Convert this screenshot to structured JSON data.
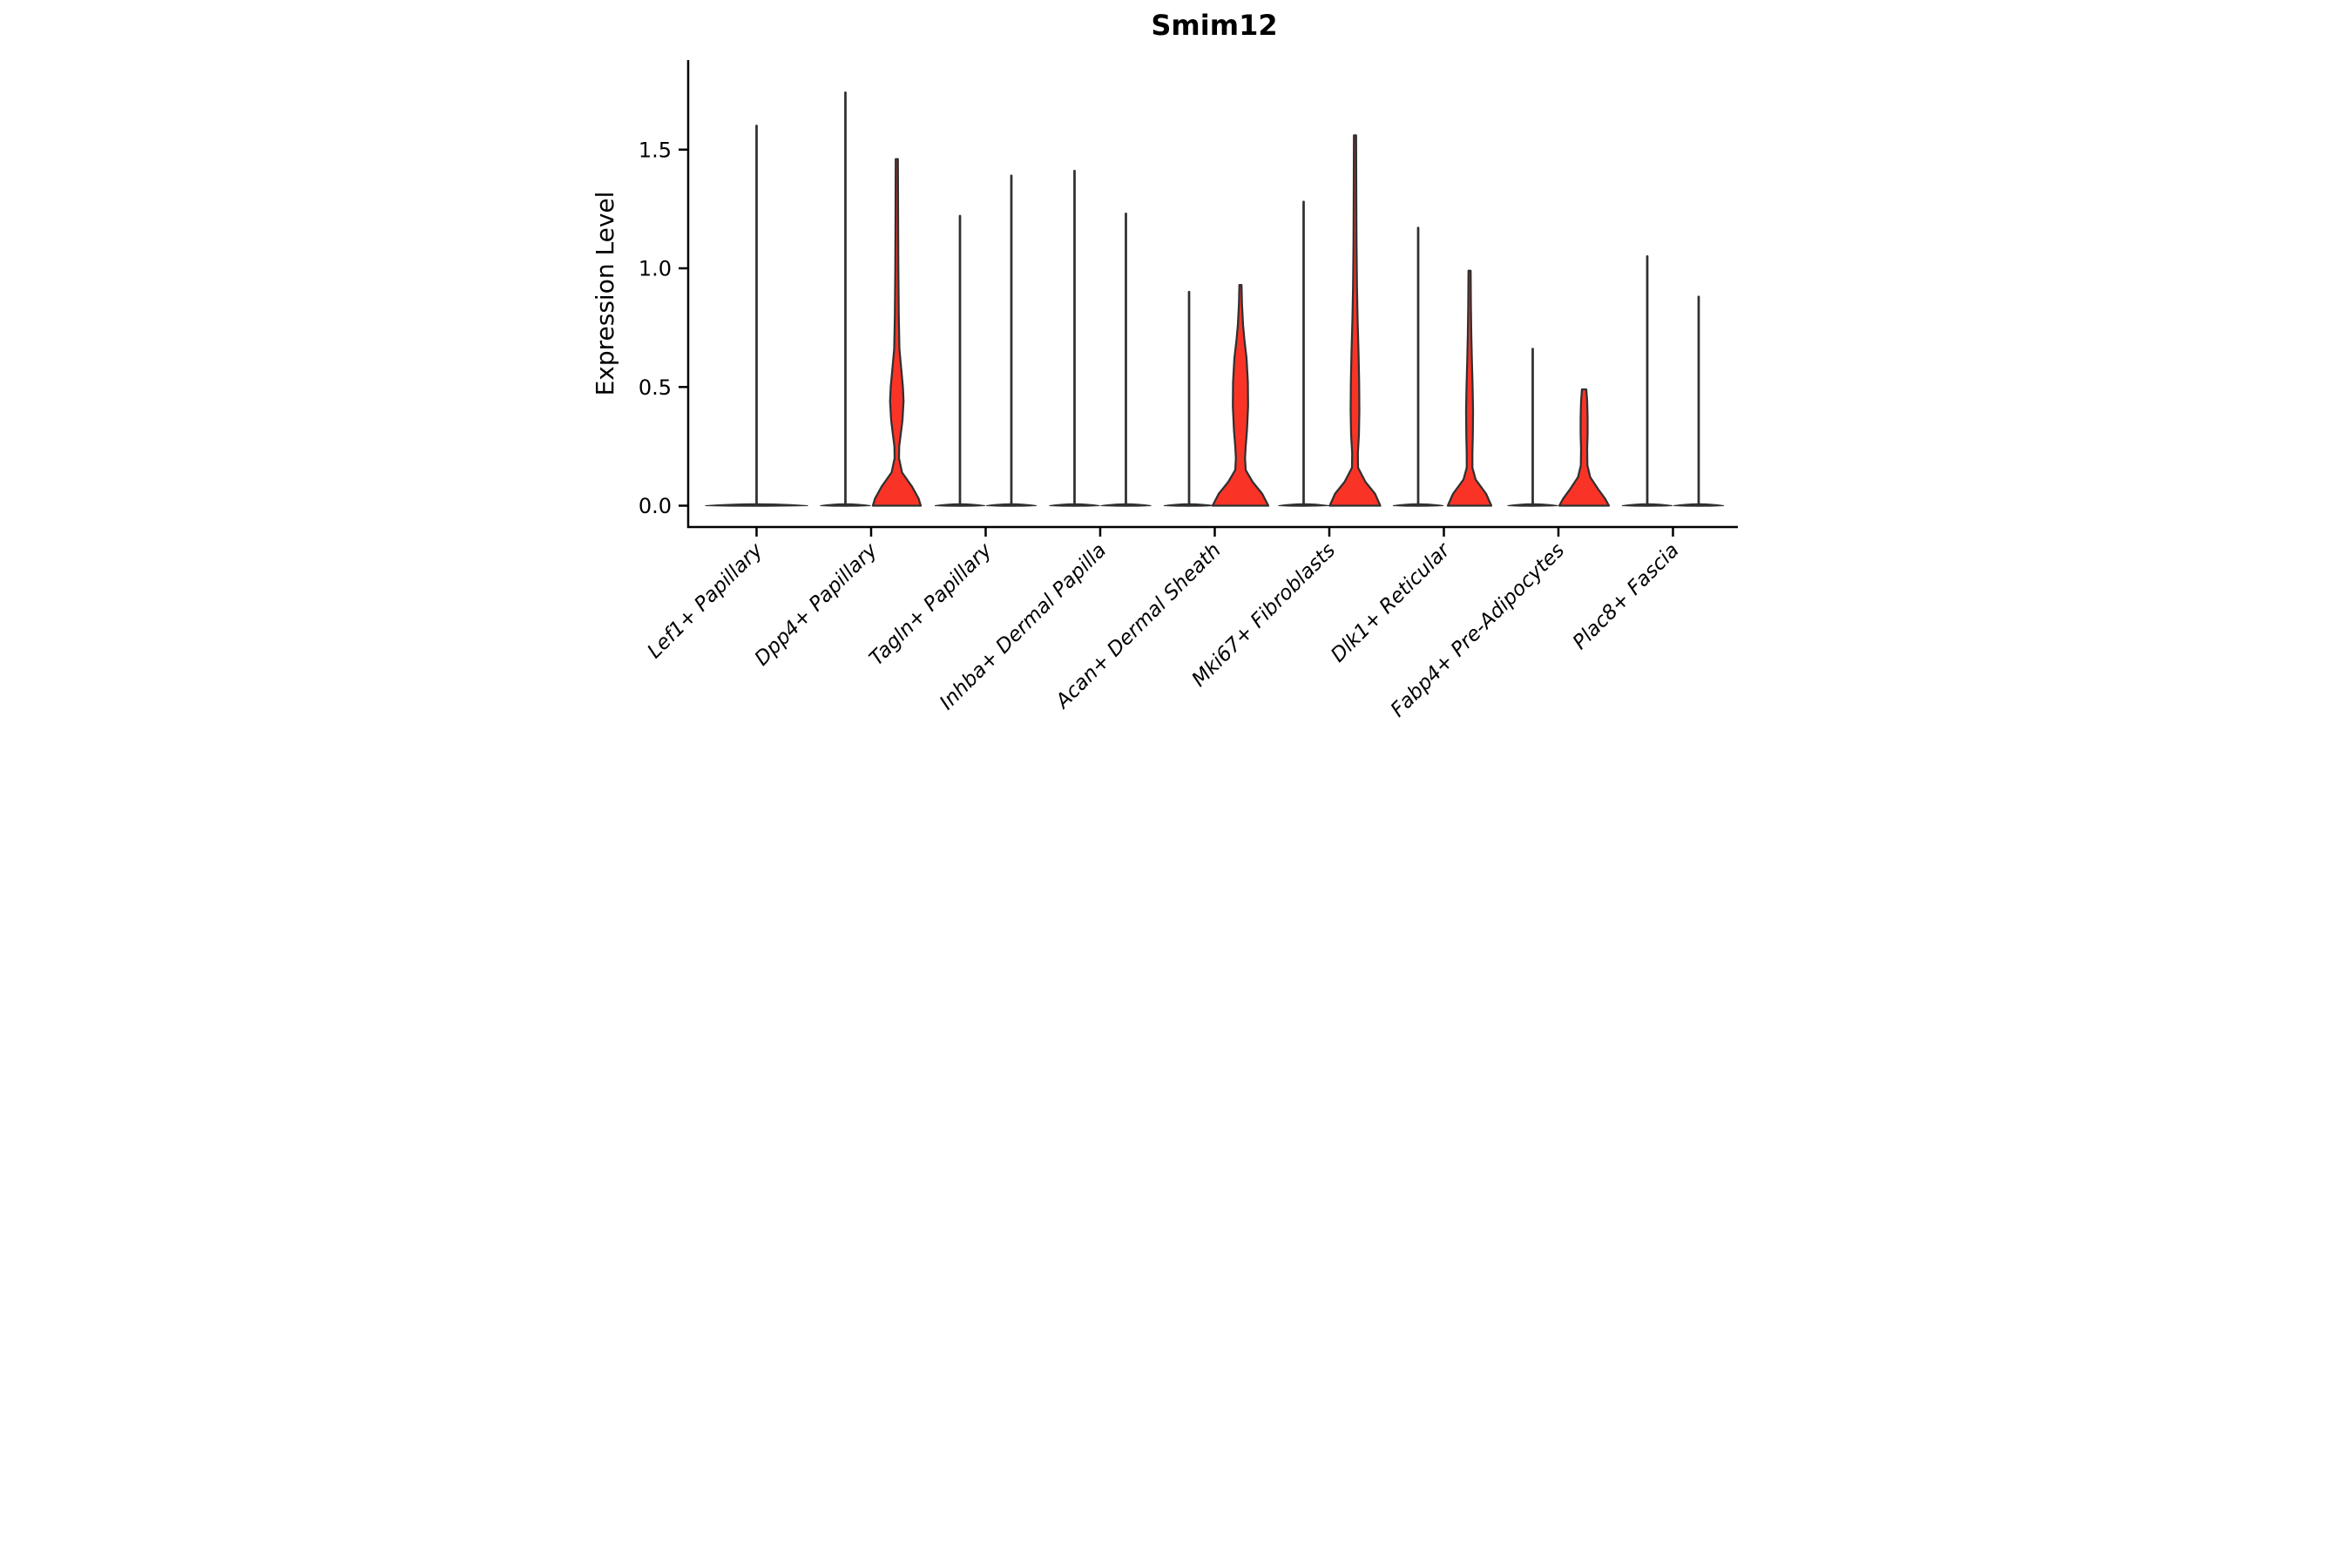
{
  "chart_data": {
    "type": "violin",
    "title": "Smim12",
    "ylabel": "Expression Level",
    "xlabel": "",
    "ylim": [
      -0.09,
      1.88
    ],
    "grid": false,
    "legend": null,
    "colors": {
      "violin_fill_highlight": "#f93427",
      "violin_outline": "#303030",
      "axis": "#000000",
      "background": "#ffffff"
    },
    "y_ticks": [
      {
        "value": 0.0,
        "label": "0.0"
      },
      {
        "value": 0.5,
        "label": "0.5"
      },
      {
        "value": 1.0,
        "label": "1.0"
      },
      {
        "value": 1.5,
        "label": "1.5"
      }
    ],
    "categories": [
      {
        "label": "Lef1+ Papillary",
        "violins": [
          {
            "position": "center",
            "style": "spike",
            "max_expression": 1.6,
            "filled": false
          }
        ]
      },
      {
        "label": "Dpp4+ Papillary",
        "violins": [
          {
            "position": "left",
            "style": "spike",
            "max_expression": 1.74,
            "filled": false
          },
          {
            "position": "right",
            "style": "filled",
            "max_expression": 1.46,
            "filled": true,
            "profile": [
              [
                1.46,
                2.5
              ],
              [
                1.2,
                3
              ],
              [
                1.0,
                3.5
              ],
              [
                0.8,
                4.5
              ],
              [
                0.66,
                6
              ],
              [
                0.58,
                10
              ],
              [
                0.5,
                14
              ],
              [
                0.44,
                15.5
              ],
              [
                0.36,
                13
              ],
              [
                0.3,
                9
              ],
              [
                0.25,
                5.5
              ],
              [
                0.2,
                5
              ],
              [
                0.14,
                12
              ],
              [
                0.08,
                35
              ],
              [
                0.03,
                50
              ],
              [
                0,
                55
              ]
            ]
          }
        ]
      },
      {
        "label": "Tagln+ Papillary",
        "violins": [
          {
            "position": "left",
            "style": "spike",
            "max_expression": 1.22,
            "filled": false
          },
          {
            "position": "right",
            "style": "spike",
            "max_expression": 1.39,
            "filled": false
          }
        ]
      },
      {
        "label": "Inhba+ Dermal Papilla",
        "violins": [
          {
            "position": "left",
            "style": "spike",
            "max_expression": 1.41,
            "filled": false
          },
          {
            "position": "right",
            "style": "spike",
            "max_expression": 1.23,
            "filled": false
          }
        ]
      },
      {
        "label": "Acan+ Dermal Sheath",
        "violins": [
          {
            "position": "left",
            "style": "spike",
            "max_expression": 0.9,
            "filled": false
          },
          {
            "position": "right",
            "style": "filled",
            "max_expression": 0.93,
            "filled": true,
            "profile": [
              [
                0.93,
                2.5
              ],
              [
                0.85,
                3.5
              ],
              [
                0.76,
                6
              ],
              [
                0.7,
                9
              ],
              [
                0.62,
                14
              ],
              [
                0.52,
                17
              ],
              [
                0.42,
                17.5
              ],
              [
                0.32,
                15
              ],
              [
                0.25,
                12
              ],
              [
                0.2,
                10.5
              ],
              [
                0.15,
                12
              ],
              [
                0.1,
                28
              ],
              [
                0.05,
                50
              ],
              [
                0,
                64
              ]
            ]
          }
        ]
      },
      {
        "label": "Mki67+ Fibroblasts",
        "violins": [
          {
            "position": "left",
            "style": "spike",
            "max_expression": 1.28,
            "filled": false
          },
          {
            "position": "right",
            "style": "filled",
            "max_expression": 1.56,
            "filled": true,
            "profile": [
              [
                1.56,
                2.5
              ],
              [
                1.3,
                3
              ],
              [
                1.1,
                3.5
              ],
              [
                0.92,
                4.5
              ],
              [
                0.78,
                6
              ],
              [
                0.65,
                8
              ],
              [
                0.52,
                9.5
              ],
              [
                0.4,
                10
              ],
              [
                0.3,
                9
              ],
              [
                0.22,
                6.5
              ],
              [
                0.16,
                7
              ],
              [
                0.1,
                24
              ],
              [
                0.05,
                46
              ],
              [
                0,
                58
              ]
            ]
          }
        ]
      },
      {
        "label": "Dlk1+ Reticular",
        "violins": [
          {
            "position": "left",
            "style": "spike",
            "max_expression": 1.17,
            "filled": false
          },
          {
            "position": "right",
            "style": "filled",
            "max_expression": 0.99,
            "filled": true,
            "profile": [
              [
                0.99,
                2.5
              ],
              [
                0.85,
                3
              ],
              [
                0.72,
                4
              ],
              [
                0.6,
                5.5
              ],
              [
                0.5,
                7
              ],
              [
                0.4,
                8
              ],
              [
                0.3,
                7.5
              ],
              [
                0.22,
                6.5
              ],
              [
                0.16,
                6.5
              ],
              [
                0.11,
                14
              ],
              [
                0.05,
                38
              ],
              [
                0,
                50
              ]
            ]
          }
        ]
      },
      {
        "label": "Fabp4+ Pre-Adipocytes",
        "violins": [
          {
            "position": "left",
            "style": "spike",
            "max_expression": 0.66,
            "filled": false
          },
          {
            "position": "right",
            "style": "filled",
            "max_expression": 0.49,
            "filled": true,
            "profile": [
              [
                0.49,
                5
              ],
              [
                0.44,
                7
              ],
              [
                0.37,
                8
              ],
              [
                0.3,
                8
              ],
              [
                0.24,
                7
              ],
              [
                0.17,
                7.5
              ],
              [
                0.12,
                14
              ],
              [
                0.07,
                32
              ],
              [
                0.03,
                48
              ],
              [
                0,
                57
              ]
            ]
          }
        ]
      },
      {
        "label": "Plac8+ Fascia",
        "violins": [
          {
            "position": "left",
            "style": "spike",
            "max_expression": 1.05,
            "filled": false
          },
          {
            "position": "right",
            "style": "spike",
            "max_expression": 0.88,
            "filled": false
          }
        ]
      }
    ]
  }
}
